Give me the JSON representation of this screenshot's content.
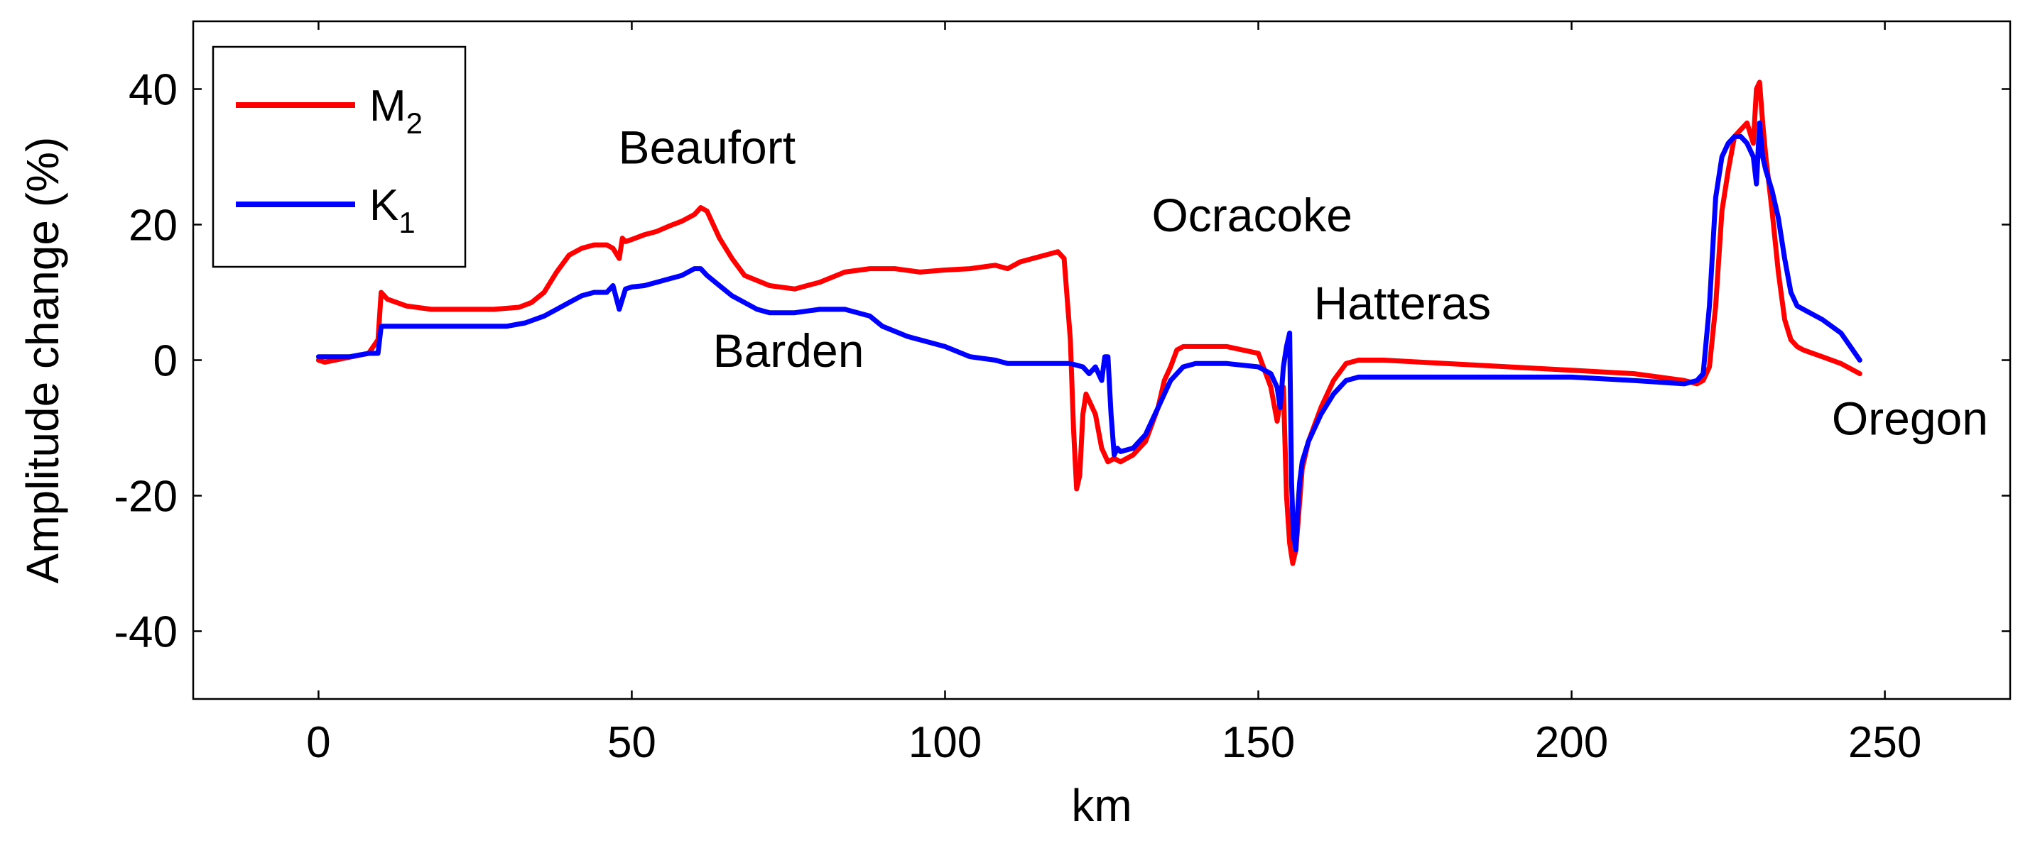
{
  "chart_data": {
    "type": "line",
    "title": "",
    "xlabel": "km",
    "ylabel": "Amplitude change (%)",
    "xlim": [
      -20,
      270
    ],
    "ylim": [
      -50,
      50
    ],
    "xticks": [
      0,
      50,
      100,
      150,
      200,
      250
    ],
    "yticks": [
      -40,
      -20,
      0,
      20,
      40
    ],
    "xtick_labels": [
      "0",
      "50",
      "100",
      "150",
      "200",
      "250"
    ],
    "ytick_labels": [
      "-40",
      "-20",
      "0",
      "20",
      "40"
    ],
    "grid": false,
    "legend_position": "top-left",
    "colors": {
      "m2": "#ff0000",
      "k1": "#0000ff",
      "axis": "#000000"
    },
    "series": [
      {
        "name": "M2",
        "label_main": "M",
        "label_sub": "2",
        "color": "#ff0000",
        "x": [
          0,
          1,
          8,
          9.5,
          10,
          11,
          14,
          18,
          22,
          28,
          32,
          34,
          36,
          38,
          40,
          42,
          44,
          46,
          47,
          48,
          48.5,
          49,
          50,
          52,
          54,
          56,
          58,
          60,
          61,
          62,
          63,
          64,
          66,
          68,
          72,
          76,
          80,
          84,
          88,
          92,
          96,
          100,
          104,
          108,
          110,
          112,
          116,
          118,
          119,
          119.5,
          120,
          120.5,
          121,
          121.5,
          122,
          122.5,
          123,
          124,
          125,
          126,
          127,
          128,
          130,
          132,
          134,
          135,
          136,
          137,
          138,
          140,
          145,
          150,
          152,
          153,
          153.5,
          154,
          154.5,
          155,
          155.5,
          156,
          156.5,
          157,
          158,
          160,
          162,
          164,
          166,
          170,
          180,
          190,
          200,
          210,
          218,
          220,
          221,
          222,
          223,
          224,
          225,
          226,
          227,
          228,
          229,
          229.5,
          230,
          230.5,
          231,
          232,
          233,
          234,
          235,
          236,
          237,
          240,
          243,
          246
        ],
        "values": [
          0,
          -0.3,
          1,
          3,
          10,
          9,
          8,
          7.5,
          7.5,
          7.5,
          7.8,
          8.5,
          10,
          13,
          15.5,
          16.5,
          17,
          17,
          16.5,
          15,
          18,
          17.5,
          17.8,
          18.5,
          19,
          19.8,
          20.5,
          21.5,
          22.5,
          22,
          20,
          18,
          15,
          12.5,
          11,
          10.5,
          11.5,
          13,
          13.5,
          13.5,
          13,
          13.3,
          13.5,
          14,
          13.5,
          14.5,
          15.5,
          16,
          15,
          9,
          3,
          -10,
          -19,
          -17,
          -8,
          -5,
          -6,
          -8,
          -13,
          -15,
          -14.5,
          -15,
          -14,
          -12,
          -7,
          -3,
          -1,
          1.5,
          2,
          2,
          2,
          1,
          -4,
          -9,
          -6,
          -4,
          -20,
          -27,
          -30,
          -28,
          -22,
          -16,
          -12,
          -7,
          -3,
          -0.5,
          0,
          0,
          -0.5,
          -1,
          -1.5,
          -2,
          -3,
          -3.5,
          -3,
          -1,
          8,
          22,
          28,
          33,
          34,
          35,
          32,
          40,
          41,
          35,
          30,
          22,
          13,
          6,
          3,
          2,
          1.5,
          0.5,
          -0.5,
          -2
        ]
      },
      {
        "name": "K1",
        "label_main": "K",
        "label_sub": "1",
        "color": "#0000ff",
        "x": [
          0,
          2,
          5,
          8,
          9.5,
          10,
          15,
          20,
          25,
          30,
          33,
          36,
          38,
          40,
          42,
          44,
          46,
          47,
          48,
          49,
          50,
          52,
          54,
          56,
          58,
          60,
          61,
          62,
          64,
          66,
          68,
          70,
          72,
          76,
          80,
          84,
          88,
          90,
          94,
          100,
          104,
          108,
          110,
          116,
          120,
          122,
          123,
          124,
          125,
          125.5,
          126,
          126.5,
          127,
          127.5,
          128,
          130,
          132,
          134,
          136,
          138,
          140,
          145,
          150,
          152,
          153,
          153.5,
          154,
          154.5,
          155,
          155.3,
          155.6,
          156,
          156.3,
          156.6,
          157,
          158,
          160,
          162,
          164,
          166,
          170,
          180,
          190,
          200,
          210,
          218,
          220,
          221,
          222,
          223,
          224,
          225,
          226,
          227,
          228,
          229,
          229.5,
          230,
          230.5,
          231,
          232,
          233,
          234,
          235,
          236,
          238,
          240,
          243,
          246
        ],
        "values": [
          0.5,
          0.5,
          0.5,
          1,
          1,
          5,
          5,
          5,
          5,
          5,
          5.5,
          6.5,
          7.5,
          8.5,
          9.5,
          10,
          10,
          11,
          7.5,
          10.5,
          10.8,
          11,
          11.5,
          12,
          12.5,
          13.5,
          13.5,
          12.5,
          11,
          9.5,
          8.5,
          7.5,
          7,
          7,
          7.5,
          7.5,
          6.5,
          5,
          3.5,
          2,
          0.5,
          0,
          -0.5,
          -0.5,
          -0.5,
          -1,
          -2,
          -1,
          -3,
          0.5,
          0.5,
          -8,
          -14,
          -13,
          -13.5,
          -13,
          -11,
          -7,
          -3,
          -1,
          -0.5,
          -0.5,
          -1,
          -2,
          -4,
          -7,
          -1,
          2,
          4,
          -18,
          -26,
          -28,
          -22,
          -18,
          -15,
          -12,
          -8,
          -5,
          -3,
          -2.5,
          -2.5,
          -2.5,
          -2.5,
          -2.5,
          -3,
          -3.5,
          -3,
          -2,
          8,
          24,
          30,
          32,
          33,
          33,
          32,
          30,
          26,
          35,
          30,
          28,
          25,
          21,
          15,
          10,
          8,
          7,
          6,
          4,
          0
        ]
      }
    ],
    "annotations": [
      {
        "text": "Beaufort",
        "x": 62,
        "y": 29
      },
      {
        "text": "Barden",
        "x": 75,
        "y": -1
      },
      {
        "text": "Ocracoke",
        "x": 149,
        "y": 19
      },
      {
        "text": "Hatteras",
        "x": 173,
        "y": 6
      },
      {
        "text": "Oregon",
        "x": 254,
        "y": -11
      }
    ]
  }
}
